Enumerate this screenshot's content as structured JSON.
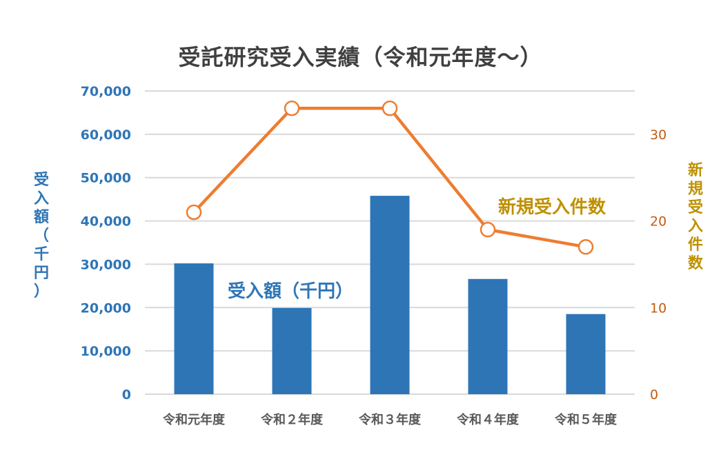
{
  "title": "受託研究受入実績（令和元年度～）",
  "axes": {
    "left_label_chars": [
      "受",
      "入",
      "額",
      "（",
      "千",
      "円",
      "）"
    ],
    "right_label_chars": [
      "新",
      "規",
      "受",
      "入",
      "件",
      "数"
    ],
    "left_ticks": [
      "0",
      "10,000",
      "20,000",
      "30,000",
      "40,000",
      "50,000",
      "60,000",
      "70,000"
    ],
    "right_ticks": [
      "0",
      "10",
      "20",
      "30"
    ]
  },
  "annotations": {
    "bar_series_label": "受入額（千円）",
    "line_series_label": "新規受入件数"
  },
  "colors": {
    "bar": "#2E75B6",
    "line": "#ED7D31",
    "left_axis": "#2E75B6",
    "right_axis_ticks": "#C55A11",
    "right_axis_title": "#BF9000",
    "grid": "#D9D9D9",
    "title": "#404040"
  },
  "chart_data": {
    "type": "bar",
    "title": "受託研究受入実績（令和元年度～）",
    "categories": [
      "令和元年度",
      "令和２年度",
      "令和３年度",
      "令和４年度",
      "令和５年度"
    ],
    "series": [
      {
        "name": "受入額（千円）",
        "type": "bar",
        "axis": "left",
        "values": [
          30200,
          19900,
          45800,
          26600,
          18500
        ]
      },
      {
        "name": "新規受入件数",
        "type": "line",
        "axis": "right",
        "values": [
          21,
          33,
          33,
          19,
          17
        ]
      }
    ],
    "xlabel": "",
    "ylabel": "受入額（千円）",
    "y2label": "新規受入件数",
    "ylim": [
      0,
      70000
    ],
    "y2lim": [
      0,
      35
    ],
    "grid": true,
    "legend": "inline annotations"
  }
}
